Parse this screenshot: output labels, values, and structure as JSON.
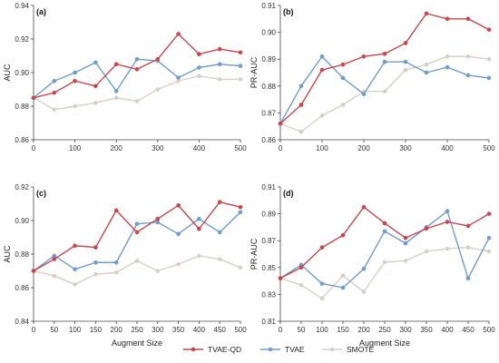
{
  "colors": {
    "TVAE-QD": "#c9464b",
    "TVAE": "#6f9dcc",
    "SMOTE": "#d7d0c4",
    "axis": "#444444"
  },
  "legend": {
    "placement": "bottom-center",
    "items": [
      "TVAE-QD",
      "TVAE",
      "SMOTE"
    ]
  },
  "chart_data": [
    {
      "type": "line",
      "panel_label": "(a)",
      "ylabel": "AUC",
      "xlabel": "",
      "x": [
        0,
        50,
        100,
        150,
        200,
        250,
        300,
        350,
        400,
        450,
        500
      ],
      "xticks": [
        0,
        100,
        200,
        300,
        400,
        500
      ],
      "xlim": [
        0,
        500
      ],
      "ylim": [
        0.86,
        0.94
      ],
      "yticks": [
        "0.86",
        "0.88",
        "0.90",
        "0.92",
        "0.94"
      ],
      "series": [
        {
          "name": "TVAE-QD",
          "values": [
            0.885,
            0.888,
            0.895,
            0.892,
            0.905,
            0.902,
            0.908,
            0.923,
            0.911,
            0.914,
            0.912
          ]
        },
        {
          "name": "TVAE",
          "values": [
            0.885,
            0.895,
            0.9,
            0.906,
            0.889,
            0.908,
            0.907,
            0.897,
            0.903,
            0.905,
            0.904
          ]
        },
        {
          "name": "SMOTE",
          "values": [
            0.885,
            0.878,
            0.88,
            0.882,
            0.885,
            0.883,
            0.89,
            0.895,
            0.898,
            0.896,
            0.896
          ]
        }
      ]
    },
    {
      "type": "line",
      "panel_label": "(b)",
      "ylabel": "PR-AUC",
      "xlabel": "",
      "x": [
        0,
        50,
        100,
        150,
        200,
        250,
        300,
        350,
        400,
        450,
        500
      ],
      "xticks": [
        0,
        100,
        200,
        300,
        400,
        500
      ],
      "xlim": [
        0,
        500
      ],
      "ylim": [
        0.86,
        0.91
      ],
      "yticks": [
        "0.86",
        "0.87",
        "0.88",
        "0.89",
        "0.90",
        "0.91"
      ],
      "series": [
        {
          "name": "TVAE-QD",
          "values": [
            0.866,
            0.873,
            0.886,
            0.888,
            0.891,
            0.892,
            0.896,
            0.907,
            0.905,
            0.905,
            0.901
          ]
        },
        {
          "name": "TVAE",
          "values": [
            0.866,
            0.88,
            0.891,
            0.883,
            0.877,
            0.889,
            0.889,
            0.885,
            0.887,
            0.884,
            0.883
          ]
        },
        {
          "name": "SMOTE",
          "values": [
            0.866,
            0.863,
            0.869,
            0.873,
            0.878,
            0.878,
            0.886,
            0.888,
            0.891,
            0.891,
            0.89
          ]
        }
      ]
    },
    {
      "type": "line",
      "panel_label": "(c)",
      "ylabel": "AUC",
      "xlabel": "Augment Size",
      "x": [
        0,
        50,
        100,
        150,
        200,
        250,
        300,
        350,
        400,
        450,
        500
      ],
      "xticks": [
        0,
        50,
        100,
        150,
        200,
        250,
        300,
        350,
        400,
        450,
        500
      ],
      "xlim": [
        0,
        500
      ],
      "ylim": [
        0.84,
        0.92
      ],
      "yticks": [
        "0.84",
        "0.86",
        "0.88",
        "0.90",
        "0.92"
      ],
      "series": [
        {
          "name": "TVAE-QD",
          "values": [
            0.87,
            0.877,
            0.885,
            0.884,
            0.906,
            0.893,
            0.901,
            0.909,
            0.895,
            0.911,
            0.908
          ]
        },
        {
          "name": "TVAE",
          "values": [
            0.87,
            0.879,
            0.871,
            0.875,
            0.875,
            0.898,
            0.899,
            0.892,
            0.901,
            0.893,
            0.905
          ]
        },
        {
          "name": "SMOTE",
          "values": [
            0.87,
            0.867,
            0.862,
            0.868,
            0.869,
            0.876,
            0.87,
            0.874,
            0.879,
            0.877,
            0.872
          ]
        }
      ]
    },
    {
      "type": "line",
      "panel_label": "(d)",
      "ylabel": "PR-AUC",
      "xlabel": "Augment Size",
      "x": [
        0,
        50,
        100,
        150,
        200,
        250,
        300,
        350,
        400,
        450,
        500
      ],
      "xticks": [
        0,
        50,
        100,
        150,
        200,
        250,
        300,
        350,
        400,
        450,
        500
      ],
      "xlim": [
        0,
        500
      ],
      "ylim": [
        0.81,
        0.91
      ],
      "yticks": [
        "0.81",
        "0.83",
        "0.85",
        "0.87",
        "0.89",
        "0.91"
      ],
      "series": [
        {
          "name": "TVAE-QD",
          "values": [
            0.842,
            0.85,
            0.865,
            0.874,
            0.895,
            0.883,
            0.872,
            0.879,
            0.884,
            0.881,
            0.89
          ]
        },
        {
          "name": "TVAE",
          "values": [
            0.842,
            0.852,
            0.838,
            0.835,
            0.849,
            0.877,
            0.868,
            0.88,
            0.892,
            0.842,
            0.872
          ]
        },
        {
          "name": "SMOTE",
          "values": [
            0.842,
            0.837,
            0.827,
            0.844,
            0.832,
            0.854,
            0.855,
            0.862,
            0.864,
            0.865,
            0.862
          ]
        }
      ]
    }
  ]
}
